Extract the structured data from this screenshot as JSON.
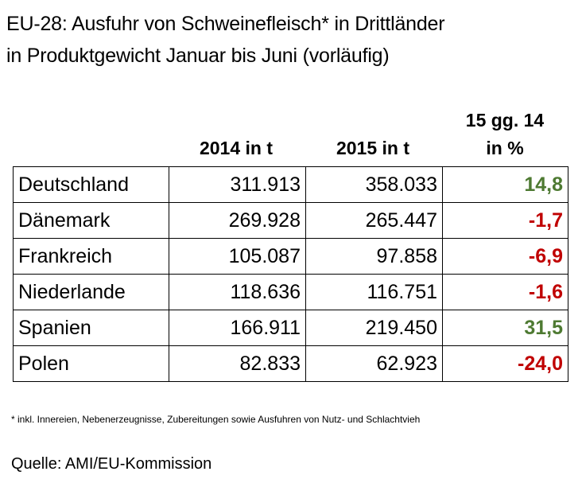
{
  "title": {
    "line1": "EU-28: Ausfuhr von Schweinefleisch* in Drittländer",
    "line2": "in Produktgewicht Januar bis Juni (vorläufig)"
  },
  "headers": {
    "col2014": "2014 in t",
    "col2015": "2015 in t",
    "change_line1": "15 gg. 14",
    "change_line2": "in %"
  },
  "rows": [
    {
      "country": "Deutschland",
      "v2014": "311.913",
      "v2015": "358.033",
      "change": "14,8",
      "trend": "positive"
    },
    {
      "country": "Dänemark",
      "v2014": "269.928",
      "v2015": "265.447",
      "change": "-1,7",
      "trend": "negative"
    },
    {
      "country": "Frankreich",
      "v2014": "105.087",
      "v2015": "97.858",
      "change": "-6,9",
      "trend": "negative"
    },
    {
      "country": "Niederlande",
      "v2014": "118.636",
      "v2015": "116.751",
      "change": "-1,6",
      "trend": "negative"
    },
    {
      "country": "Spanien",
      "v2014": "166.911",
      "v2015": "219.450",
      "change": "31,5",
      "trend": "positive"
    },
    {
      "country": "Polen",
      "v2014": "82.833",
      "v2015": "62.923",
      "change": "-24,0",
      "trend": "negative"
    }
  ],
  "colors": {
    "positive": "#4e7a32",
    "negative": "#c00000"
  },
  "footnote": "* inkl. Innereien, Nebenerzeugnisse, Zubereitungen sowie Ausfuhren von Nutz- und Schlachtvieh",
  "source": "Quelle: AMI/EU-Kommission"
}
